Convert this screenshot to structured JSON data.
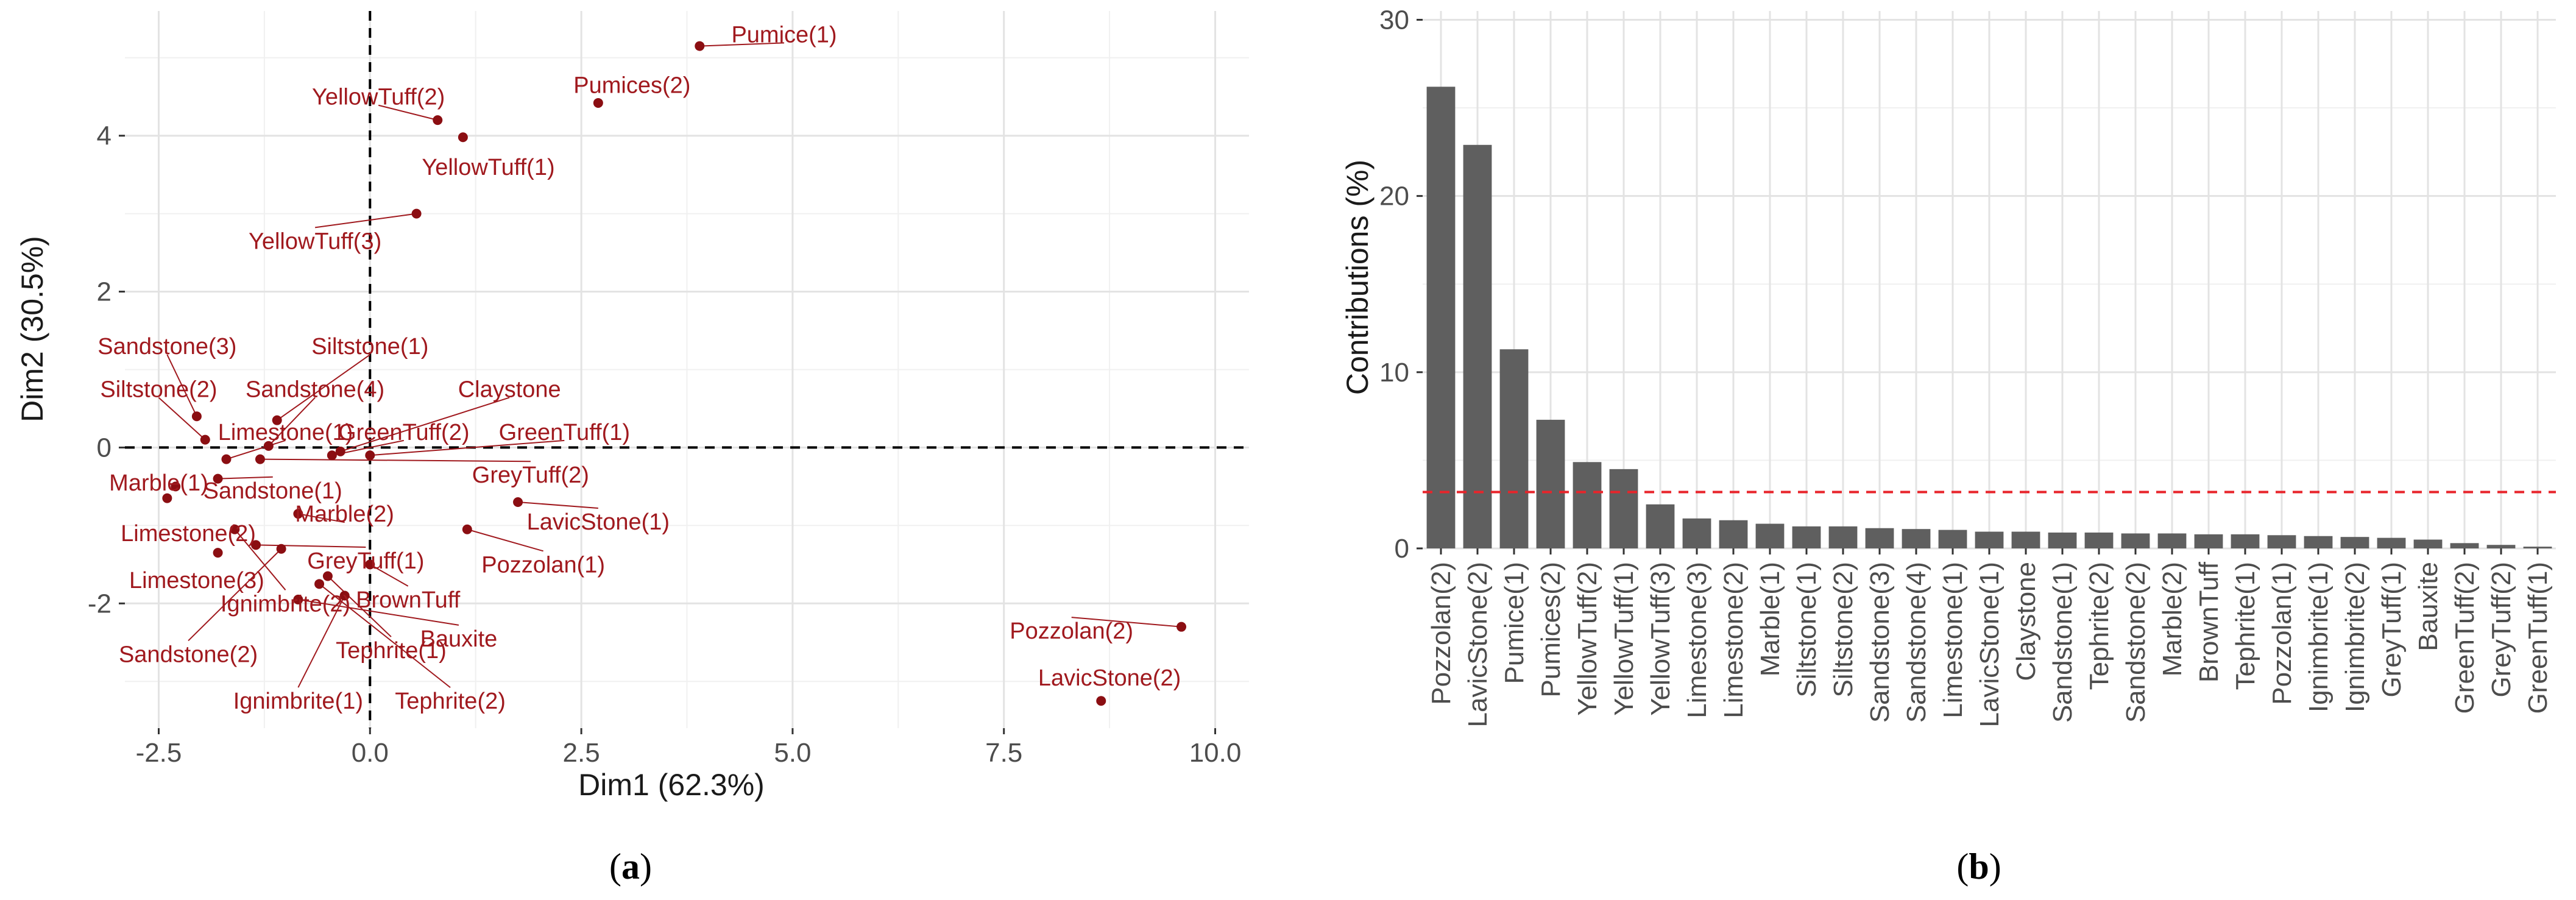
{
  "chart_data": [
    {
      "type": "scatter",
      "panel_label_open": "(",
      "panel_label_letter": "a",
      "panel_label_close": ")",
      "title": "",
      "xlabel": "Dim1 (62.3%)",
      "ylabel": "Dim2 (30.5%)",
      "xlim": [
        -2.9,
        10.4
      ],
      "ylim": [
        -3.6,
        5.6
      ],
      "xticks": [
        -2.5,
        0.0,
        2.5,
        5.0,
        7.5,
        10.0
      ],
      "xtick_labels": [
        "-2.5",
        "0.0",
        "2.5",
        "5.0",
        "7.5",
        "10.0"
      ],
      "yticks": [
        -2,
        0,
        2,
        4
      ],
      "ytick_labels": [
        "-2",
        "0",
        "2",
        "4"
      ],
      "point_color": "#8b0e12",
      "label_color": "#a0191e",
      "reference_lines": {
        "x": 0,
        "y": 0,
        "style": "dashed"
      },
      "points": [
        {
          "name": "Pumice(1)",
          "x": 3.9,
          "y": 5.15,
          "lx": 4.9,
          "ly": 5.3
        },
        {
          "name": "Pumices(2)",
          "x": 2.7,
          "y": 4.42,
          "lx": 3.1,
          "ly": 4.65
        },
        {
          "name": "YellowTuff(2)",
          "x": 0.8,
          "y": 4.2,
          "lx": 0.1,
          "ly": 4.5
        },
        {
          "name": "YellowTuff(1)",
          "x": 1.1,
          "y": 3.98,
          "lx": 1.4,
          "ly": 3.6
        },
        {
          "name": "YellowTuff(3)",
          "x": 0.55,
          "y": 3.0,
          "lx": -0.65,
          "ly": 2.65
        },
        {
          "name": "Sandstone(3)",
          "x": -2.05,
          "y": 0.4,
          "lx": -2.4,
          "ly": 1.3
        },
        {
          "name": "Siltstone(1)",
          "x": -1.1,
          "y": 0.35,
          "lx": 0.0,
          "ly": 1.3
        },
        {
          "name": "Siltstone(2)",
          "x": -1.95,
          "y": 0.1,
          "lx": -2.5,
          "ly": 0.75
        },
        {
          "name": "Sandstone(4)",
          "x": -1.2,
          "y": 0.02,
          "lx": -0.65,
          "ly": 0.75
        },
        {
          "name": "Claystone",
          "x": -0.35,
          "y": -0.05,
          "lx": 1.65,
          "ly": 0.75
        },
        {
          "name": "Limestone(1)",
          "x": -1.7,
          "y": -0.15,
          "lx": -1.0,
          "ly": 0.2
        },
        {
          "name": "GreenTuff(2)",
          "x": -0.45,
          "y": -0.1,
          "lx": 0.4,
          "ly": 0.2
        },
        {
          "name": "GreenTuff(1)",
          "x": 0.0,
          "y": -0.1,
          "lx": 2.3,
          "ly": 0.2
        },
        {
          "name": "GreyTuff(2)",
          "x": -1.3,
          "y": -0.15,
          "lx": 1.9,
          "ly": -0.35
        },
        {
          "name": "Marble(1)",
          "x": -2.3,
          "y": -0.5,
          "lx": -2.5,
          "ly": -0.45
        },
        {
          "name": "Sandstone(1)",
          "x": -1.8,
          "y": -0.4,
          "lx": -1.15,
          "ly": -0.55
        },
        {
          "name": "LavicStone(1)",
          "x": 1.75,
          "y": -0.7,
          "lx": 2.7,
          "ly": -0.95
        },
        {
          "name": "Marble(2)",
          "x": -0.85,
          "y": -0.85,
          "lx": -0.3,
          "ly": -0.85
        },
        {
          "name": "Limestone(2)",
          "x": -2.4,
          "y": -0.65,
          "lx": -2.15,
          "ly": -1.1
        },
        {
          "name": "Pozzolan(1)",
          "x": 1.15,
          "y": -1.05,
          "lx": 2.05,
          "ly": -1.5
        },
        {
          "name": "GreyTuff(1)",
          "x": -1.35,
          "y": -1.25,
          "lx": -0.05,
          "ly": -1.45
        },
        {
          "name": "Limestone(3)",
          "x": -1.8,
          "y": -1.35,
          "lx": -2.05,
          "ly": -1.7
        },
        {
          "name": "Ignimbrite(2)",
          "x": -1.6,
          "y": -1.05,
          "lx": -1.0,
          "ly": -2.0
        },
        {
          "name": "BrownTuff",
          "x": 0.0,
          "y": -1.5,
          "lx": 0.45,
          "ly": -1.95
        },
        {
          "name": "Tephrite(1)",
          "x": -0.5,
          "y": -1.65,
          "lx": 0.25,
          "ly": -2.6
        },
        {
          "name": "Bauxite",
          "x": -0.85,
          "y": -1.95,
          "lx": 1.05,
          "ly": -2.45
        },
        {
          "name": "Sandstone(2)",
          "x": -1.05,
          "y": -1.3,
          "lx": -2.15,
          "ly": -2.65
        },
        {
          "name": "Ignimbrite(1)",
          "x": -0.3,
          "y": -1.9,
          "lx": -0.85,
          "ly": -3.25
        },
        {
          "name": "Tephrite(2)",
          "x": -0.6,
          "y": -1.75,
          "lx": 0.95,
          "ly": -3.25
        },
        {
          "name": "Pozzolan(2)",
          "x": 9.6,
          "y": -2.3,
          "lx": 8.3,
          "ly": -2.35
        },
        {
          "name": "LavicStone(2)",
          "x": 8.65,
          "y": -3.25,
          "lx": 8.75,
          "ly": -2.95
        }
      ]
    },
    {
      "type": "bar",
      "panel_label_open": "(",
      "panel_label_letter": "b",
      "panel_label_close": ")",
      "title": "",
      "xlabel": "",
      "ylabel": "Contributions (%)",
      "ylim": [
        0,
        30.5
      ],
      "yticks": [
        0,
        10,
        20,
        30
      ],
      "ytick_labels": [
        "0",
        "10",
        "20",
        "30"
      ],
      "bar_color": "#5f5f5f",
      "threshold": 3.2,
      "threshold_color": "#e8242b",
      "categories": [
        "Pozzolan(2)",
        "LavicStone(2)",
        "Pumice(1)",
        "Pumices(2)",
        "YellowTuff(2)",
        "YellowTuff(1)",
        "YellowTuff(3)",
        "Limestone(3)",
        "Limestone(2)",
        "Marble(1)",
        "Siltstone(1)",
        "Siltstone(2)",
        "Sandstone(3)",
        "Sandstone(4)",
        "Limestone(1)",
        "LavicStone(1)",
        "Claystone",
        "Sandstone(1)",
        "Tephrite(2)",
        "Sandstone(2)",
        "Marble(2)",
        "BrownTuff",
        "Tephrite(1)",
        "Pozzolan(1)",
        "Ignimbrite(1)",
        "Ignimbrite(2)",
        "GreyTuff(1)",
        "Bauxite",
        "GreenTuff(2)",
        "GreyTuff(2)",
        "GreenTuff(1)"
      ],
      "values": [
        26.2,
        22.9,
        11.3,
        7.3,
        4.9,
        4.5,
        2.5,
        1.7,
        1.6,
        1.4,
        1.25,
        1.25,
        1.15,
        1.1,
        1.05,
        0.95,
        0.95,
        0.9,
        0.9,
        0.85,
        0.85,
        0.8,
        0.8,
        0.75,
        0.7,
        0.65,
        0.6,
        0.5,
        0.3,
        0.2,
        0.1
      ]
    }
  ]
}
